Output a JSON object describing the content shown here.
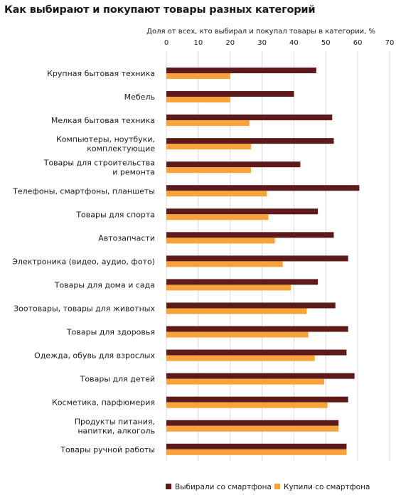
{
  "title": "Как выбирают и покупают товары разных категорий",
  "chart_data": {
    "type": "bar",
    "orientation": "horizontal",
    "title": "Как выбирают и покупают товары разных категорий",
    "xlabel": "Доля от всех, кто выбирал и покупал товары в категории, %",
    "xlim": [
      0,
      70
    ],
    "xticks": [
      0,
      10,
      20,
      30,
      40,
      50,
      60,
      70
    ],
    "axis_position": "top",
    "grid": true,
    "legend_position": "bottom",
    "categories": [
      [
        "Крупная бытовая техника"
      ],
      [
        "Мебель"
      ],
      [
        "Мелкая бытовая техника"
      ],
      [
        "Компьютеры, ноутбуки,",
        "комплектующие"
      ],
      [
        "Товары для строительства",
        "и ремонта"
      ],
      [
        "Телефоны, смартфоны, планшеты"
      ],
      [
        "Товары для спорта"
      ],
      [
        "Автозапчасти"
      ],
      [
        "Электроника (видео, аудио, фото)"
      ],
      [
        "Товары для дома и сада"
      ],
      [
        "Зоотовары, товары для животных"
      ],
      [
        "Товары для здоровья"
      ],
      [
        "Одежда, обувь для взрослых"
      ],
      [
        "Товары для детей"
      ],
      [
        "Косметика, парфюмерия"
      ],
      [
        "Продукты питания,",
        "напитки, алкоголь"
      ],
      [
        "Товары ручной работы"
      ]
    ],
    "series": [
      {
        "name": "Выбирали со смартфона",
        "color": "#5c1a1b",
        "values": [
          47,
          40,
          52,
          52.5,
          42,
          60.5,
          47.5,
          52.5,
          57,
          47.5,
          53,
          57,
          56.5,
          59,
          57,
          54,
          56.5
        ]
      },
      {
        "name": "Купили со смартфона",
        "color": "#f7a23b",
        "values": [
          20,
          20,
          26,
          26.5,
          26.5,
          31.5,
          32,
          34,
          36.5,
          39,
          44,
          44.5,
          46.5,
          49.5,
          50.5,
          54,
          56.5
        ]
      }
    ]
  }
}
